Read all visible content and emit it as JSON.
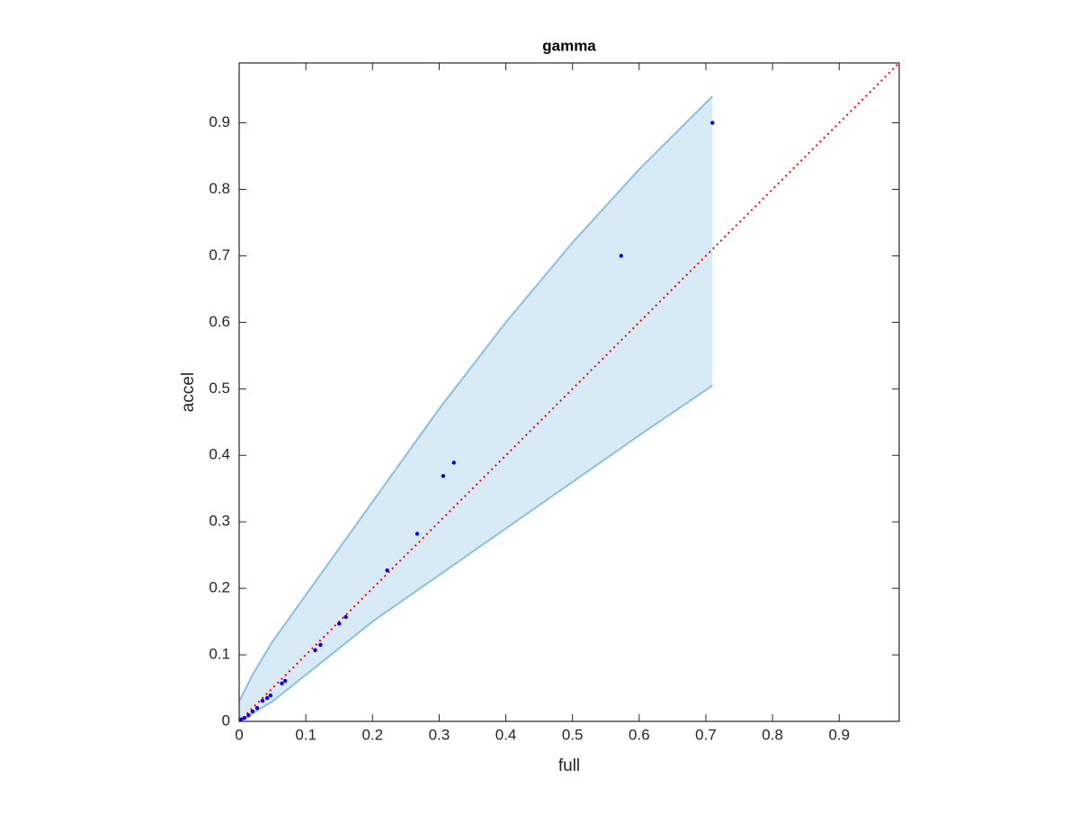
{
  "chart_data": {
    "type": "scatter",
    "title": "gamma",
    "x_label": "full",
    "y_label": "accel",
    "xlim": [
      0,
      0.99
    ],
    "ylim": [
      0,
      0.99
    ],
    "xticks": [
      0,
      0.1,
      0.2,
      0.3,
      0.4,
      0.5,
      0.6,
      0.7,
      0.8,
      0.9
    ],
    "yticks": [
      0,
      0.1,
      0.2,
      0.3,
      0.4,
      0.5,
      0.6,
      0.7,
      0.8,
      0.9
    ],
    "band": {
      "color": "#8ac0e0",
      "x": [
        0,
        0.02,
        0.05,
        0.1,
        0.15,
        0.2,
        0.3,
        0.4,
        0.5,
        0.6,
        0.71
      ],
      "upper": [
        0.03,
        0.07,
        0.12,
        0.19,
        0.26,
        0.33,
        0.47,
        0.6,
        0.72,
        0.83,
        0.94
      ],
      "lower": [
        0,
        0.012,
        0.03,
        0.07,
        0.11,
        0.15,
        0.22,
        0.29,
        0.36,
        0.43,
        0.505
      ]
    },
    "series": [
      {
        "color": "#0000ff",
        "x": [
          0.71,
          0.573,
          0.322,
          0.306,
          0.267,
          0.222,
          0.16,
          0.15,
          0.122,
          0.114,
          0.069,
          0.064,
          0.047,
          0.042,
          0.035,
          0.027,
          0.02,
          0.014,
          0.008,
          0.003
        ],
        "values": [
          0.9,
          0.7,
          0.389,
          0.369,
          0.282,
          0.227,
          0.157,
          0.147,
          0.115,
          0.107,
          0.061,
          0.057,
          0.039,
          0.035,
          0.031,
          0.02,
          0.015,
          0.009,
          0.005,
          0.003
        ]
      }
    ],
    "reference_line": {
      "color": "#ff0000",
      "x": [
        0,
        0.99
      ],
      "values": [
        0,
        0.99
      ]
    }
  }
}
